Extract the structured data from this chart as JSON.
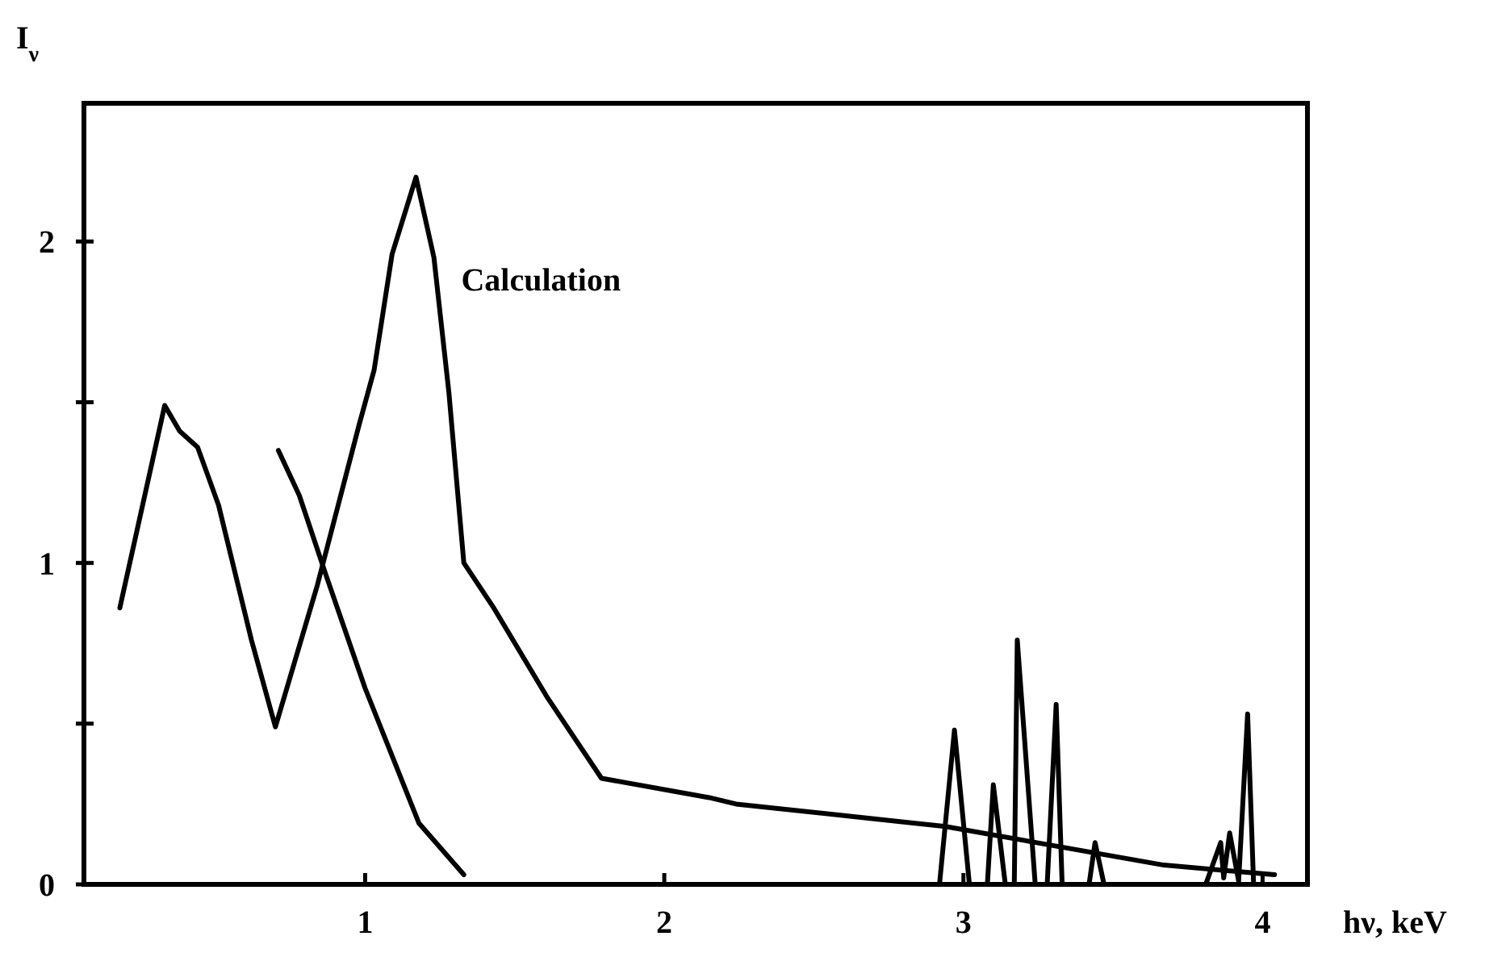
{
  "chart_data": {
    "type": "line",
    "xlabel": "hν, keV",
    "ylabel": "I$_{ν}$",
    "xlim": [
      0.06,
      4.15
    ],
    "ylim": [
      0,
      2.43
    ],
    "xticks": [
      1,
      2,
      3,
      4
    ],
    "yticks": [
      0,
      {
        "value": 0.5,
        "label": null
      },
      1,
      {
        "value": 1.5,
        "label": null
      },
      2
    ],
    "grid": false,
    "marker": "none",
    "line_style": "solid",
    "series": [
      {
        "name": "Calculation",
        "color": "#000000",
        "x": [
          0.18,
          0.33,
          0.38,
          0.44,
          0.51,
          0.62,
          0.7,
          0.84,
          0.98,
          1.03,
          1.09,
          1.17,
          1.23,
          1.28,
          1.33,
          1.43,
          1.61,
          1.79,
          2.15,
          2.24,
          2.94,
          3.67,
          4.04
        ],
        "values": [
          0.86,
          1.49,
          1.41,
          1.36,
          1.18,
          0.76,
          0.49,
          0.93,
          1.43,
          1.6,
          1.96,
          2.2,
          1.95,
          1.53,
          1.0,
          0.86,
          0.58,
          0.33,
          0.27,
          0.25,
          0.18,
          0.06,
          0.03
        ]
      },
      {
        "color": "#000000",
        "x": [
          0.71,
          0.78,
          0.87,
          1.0,
          1.18,
          1.33
        ],
        "values": [
          1.35,
          1.21,
          0.96,
          0.61,
          0.19,
          0.03
        ]
      },
      {
        "color": "#000000",
        "x": [
          2.92,
          2.97,
          3.02,
          3.08,
          3.1,
          3.14,
          3.17,
          3.18,
          3.24,
          3.28,
          3.31,
          3.33,
          3.42,
          3.44,
          3.47,
          3.81,
          3.86,
          3.87,
          3.89,
          3.92,
          3.95,
          3.97
        ],
        "values": [
          0,
          0.48,
          0,
          0,
          0.31,
          0,
          0,
          0.76,
          0,
          0,
          0.56,
          0,
          0,
          0.13,
          0,
          0,
          0.13,
          0.02,
          0.16,
          0.01,
          0.53,
          0
        ]
      }
    ]
  }
}
